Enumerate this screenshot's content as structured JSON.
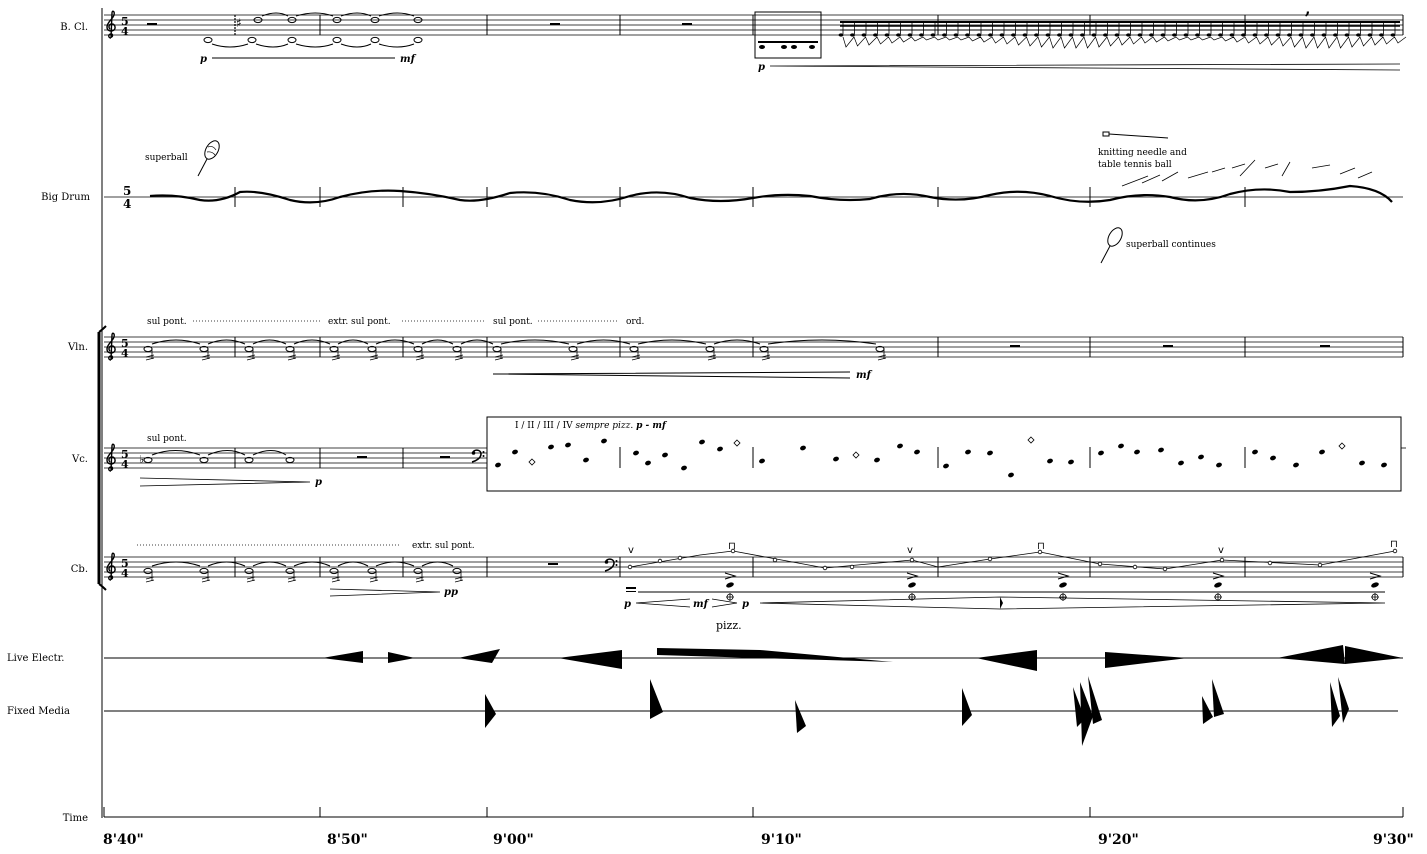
{
  "instruments": {
    "bass_clarinet": "B. Cl.",
    "big_drum": "Big Drum",
    "violin": "Vln.",
    "cello": "Vc.",
    "contrabass": "Cb.",
    "live_electronics": "Live Electr.",
    "fixed_media": "Fixed Media",
    "time": "Time"
  },
  "time_signature": {
    "top": "5",
    "bottom": "4"
  },
  "dynamics": {
    "bcl_start": "p",
    "bcl_end": "mf",
    "bcl_tremolo": "p",
    "vln_end": "mf",
    "vc_end": "p",
    "cb_hairpin_end": "pp",
    "cb_pizz_start": "p",
    "cb_pizz_mid": "mf",
    "cb_pizz_end": "p"
  },
  "techniques": {
    "superball": "superball",
    "knitting": "knitting needle and",
    "knitting2": "table tennis ball",
    "superball_continues": "superball continues",
    "vln_sul_pont": "sul pont.",
    "vln_extr_sul_pont": "extr. sul pont.",
    "vln_sul_pont2": "sul pont.",
    "vln_ord": "ord.",
    "vc_sul_pont": "sul pont.",
    "vc_box_label": "I / II / III / IV",
    "vc_box_italic": "sempre pizz.",
    "vc_box_dyn": "p - mf",
    "cb_extr_sul_pont": "extr. sul pont.",
    "cb_pizz": "pizz."
  },
  "time_marks": [
    "8'40\"",
    "8'50\"",
    "9'00\"",
    "9'10\"",
    "9'20\"",
    "9'30\""
  ]
}
